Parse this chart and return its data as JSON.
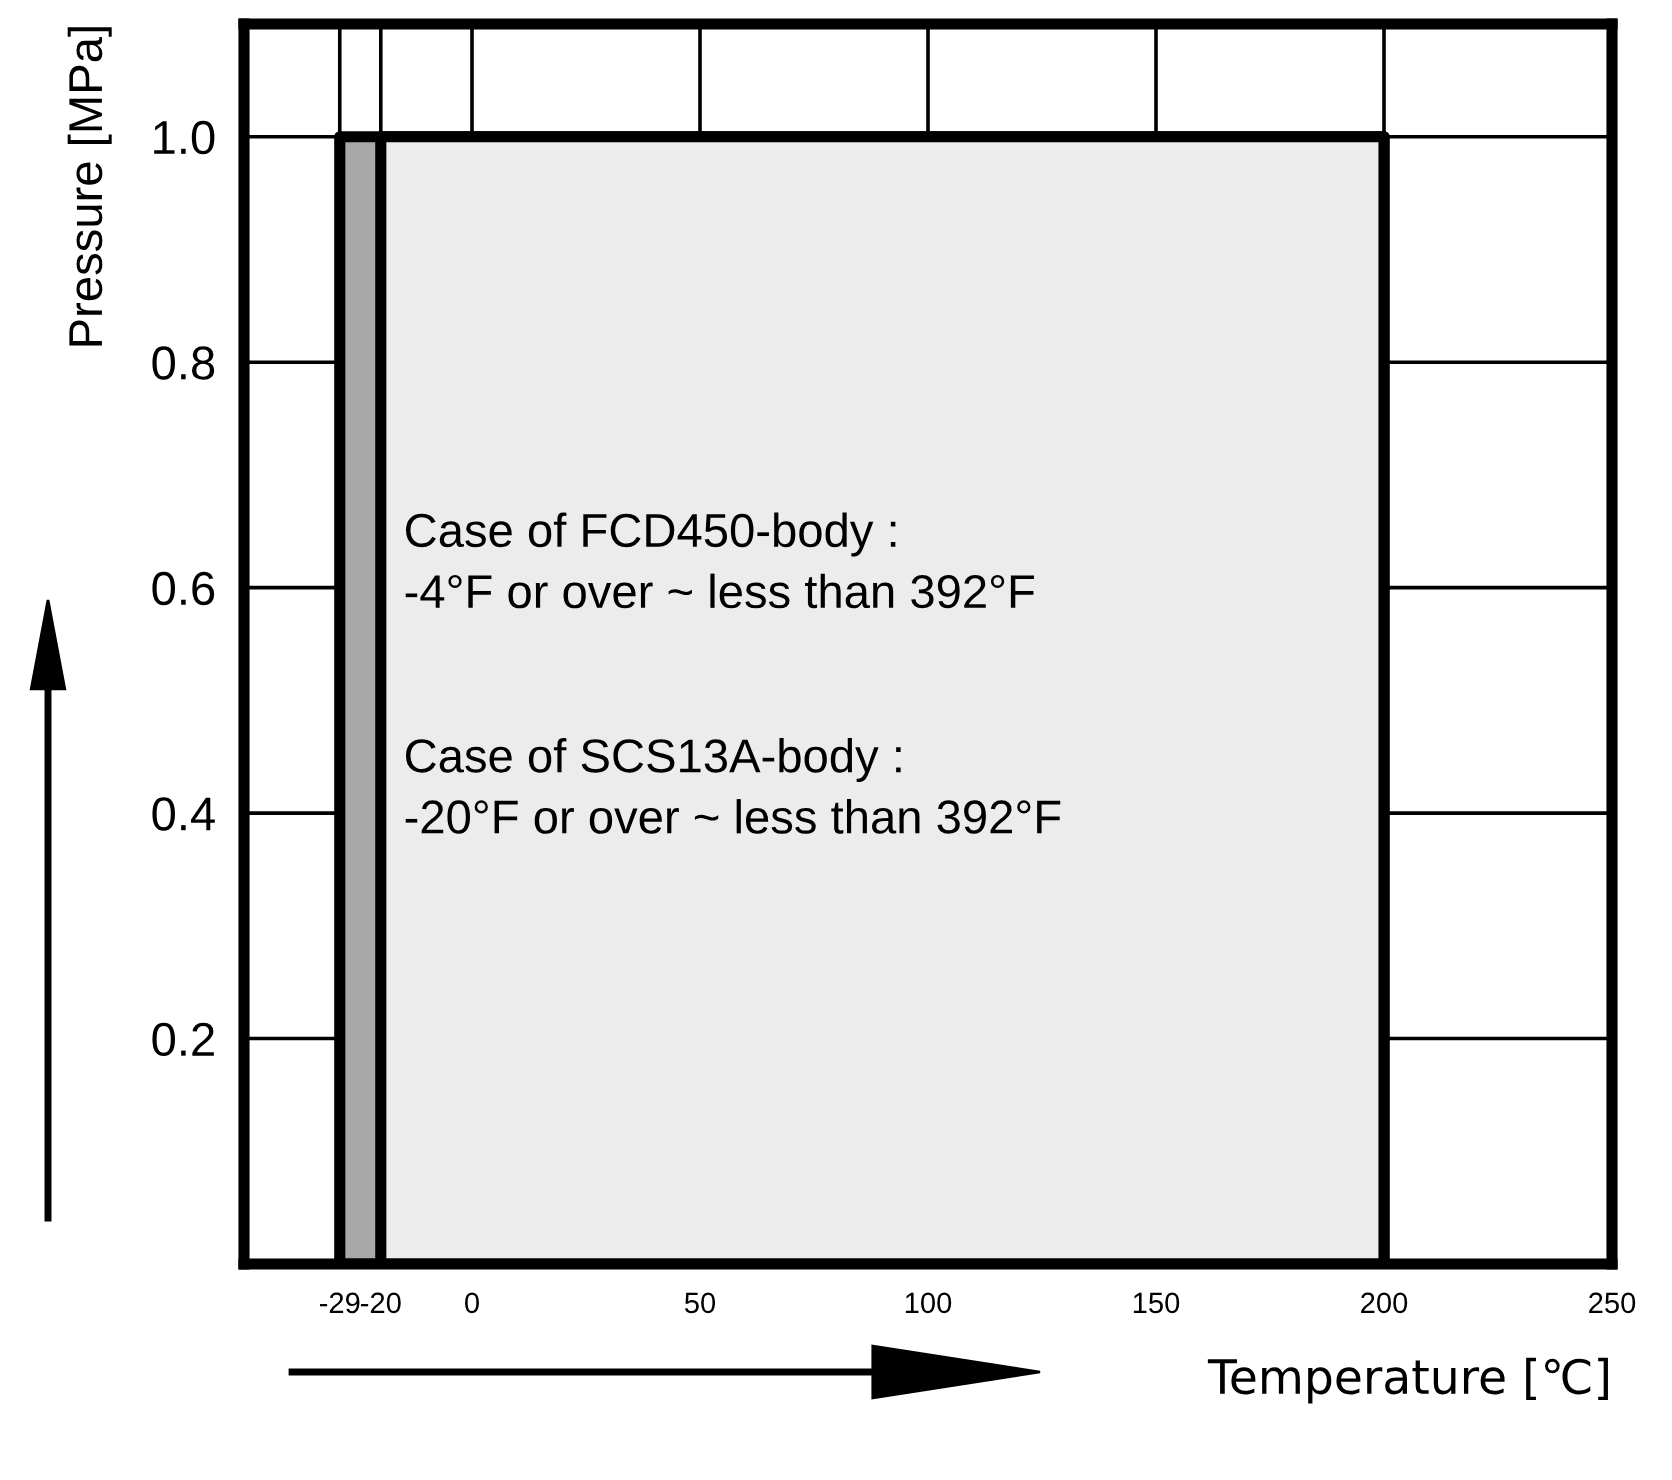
{
  "chart_data": {
    "type": "area",
    "xlabel": "Temperature [℃]",
    "ylabel": "Pressure [MPa]",
    "series": [
      {
        "color": "#a8a8a8",
        "x": [
          -29,
          200
        ],
        "values": [
          1.0,
          1.0
        ]
      },
      {
        "color": "#ececec",
        "x": [
          -20,
          200
        ],
        "values": [
          1.0,
          1.0
        ]
      }
    ],
    "xlim": [
      -50,
      250
    ],
    "xticks": [
      -29,
      -20,
      0,
      50,
      100,
      150,
      200,
      250
    ],
    "ylim": [
      0,
      1.1
    ],
    "yticks": [
      0.2,
      0.4,
      0.6,
      0.8,
      {
        "value": 1.0,
        "label": "1.0"
      }
    ],
    "grid": true,
    "annotations": [
      "Case of FCD450-body :\n-4°F or over ~ less than 392°F",
      "Case of SCS13A-body :\n-20°F or over ~ less than 392°F"
    ]
  }
}
